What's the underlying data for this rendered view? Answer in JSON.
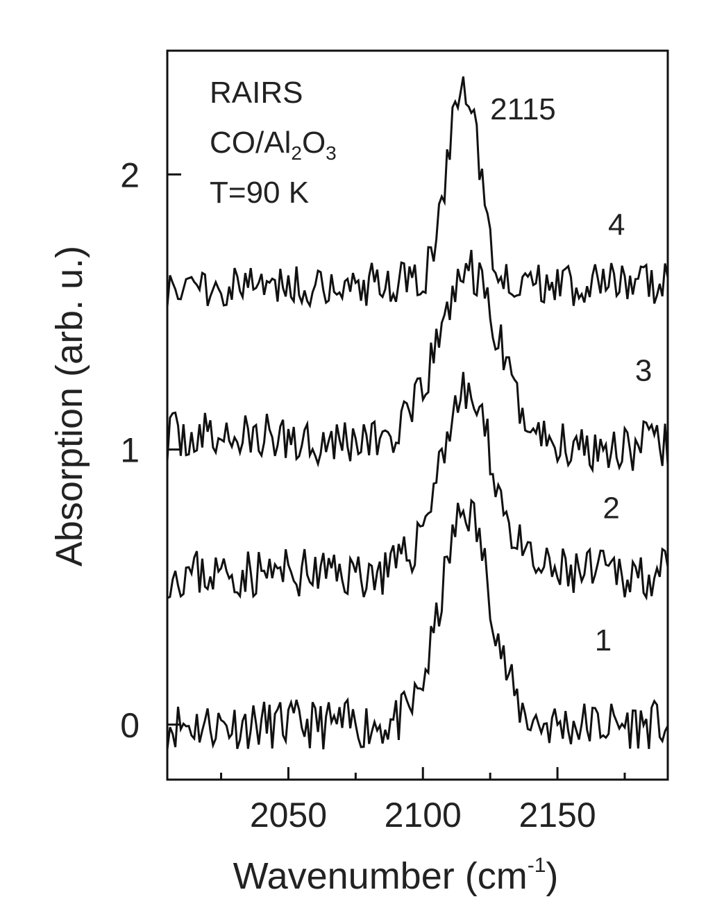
{
  "chart_data": {
    "type": "line",
    "xlabel": "Wavenumber (cm",
    "xlabel_sup": "-1",
    "xlabel_close": ")",
    "ylabel": "Absorption (arb. u.)",
    "xlim": [
      2005,
      2191
    ],
    "ylim": [
      -0.2,
      2.45
    ],
    "x_ticks": [
      2050,
      2100,
      2150
    ],
    "x_minor_ticks": [
      2025,
      2075,
      2125,
      2175
    ],
    "y_ticks": [
      0,
      1,
      2
    ],
    "annotation": {
      "lines": [
        {
          "text": "RAIRS"
        },
        {
          "parts": [
            {
              "t": "CO/Al",
              "s": ""
            },
            {
              "t": "2",
              "s": "sub"
            },
            {
              "t": "O",
              "s": ""
            },
            {
              "t": "3",
              "s": "sub"
            }
          ]
        },
        {
          "text": "T=90 K"
        }
      ]
    },
    "peak_label": {
      "text": "2115",
      "x": 2125,
      "y": 2.2
    },
    "series": [
      {
        "name": "1",
        "label_at": [
          2167,
          0.27
        ],
        "baseline": 0.0,
        "amp": 0.78,
        "center": 2116,
        "width": 9,
        "noise": 0.09,
        "slope": 0.0,
        "seed": 11
      },
      {
        "name": "2",
        "label_at": [
          2170,
          0.75
        ],
        "baseline": 0.55,
        "amp": 0.65,
        "center": 2116,
        "width": 10,
        "noise": 0.09,
        "slope": 0.0,
        "seed": 23
      },
      {
        "name": "3",
        "label_at": [
          2182,
          1.25
        ],
        "baseline": 1.05,
        "amp": 0.62,
        "center": 2117,
        "width": 11,
        "noise": 0.09,
        "slope": -0.04,
        "seed": 37
      },
      {
        "name": "4",
        "label_at": [
          2172,
          1.78
        ],
        "baseline": 1.6,
        "amp": 0.72,
        "center": 2115,
        "width": 6,
        "noise": 0.08,
        "slope": 0.0,
        "seed": 51
      }
    ],
    "color": "#111111",
    "grid": false,
    "legend": "none"
  }
}
